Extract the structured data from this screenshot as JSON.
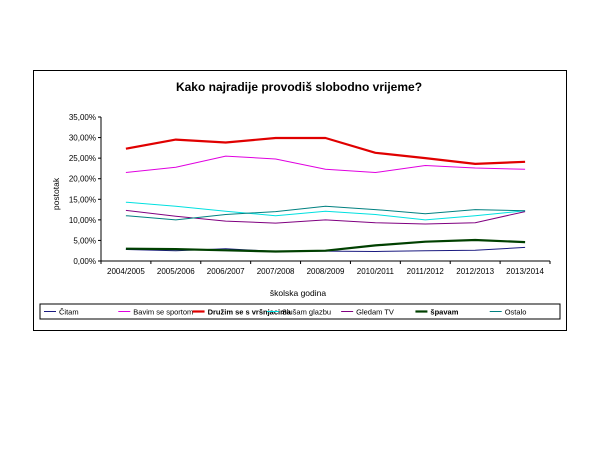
{
  "chart_data": {
    "type": "line",
    "title": "Kako najradije provodiš slobodno vrijeme?",
    "xlabel": "školska godina",
    "ylabel": "postotak",
    "ylim": [
      0,
      35
    ],
    "ytick_step": 5,
    "ytick_labels": [
      "0,00%",
      "5,00%",
      "10,00%",
      "15,00%",
      "20,00%",
      "25,00%",
      "30,00%",
      "35,00%"
    ],
    "categories": [
      "2004/2005",
      "2005/2006",
      "2006/2007",
      "2007/2008",
      "2008/2009",
      "2010/2011",
      "2011/2012",
      "2012/2013",
      "2013/2014"
    ],
    "grid": false,
    "legend_position": "bottom",
    "series": [
      {
        "name": "Čitam",
        "color": "#1a1a80",
        "bold": false,
        "values": [
          2.8,
          2.5,
          3.0,
          2.3,
          2.4,
          2.3,
          2.5,
          2.6,
          3.3
        ]
      },
      {
        "name": "Bavim se sportom",
        "color": "#e000e0",
        "bold": false,
        "values": [
          21.5,
          22.8,
          25.5,
          24.8,
          22.3,
          21.5,
          23.2,
          22.6,
          22.3
        ]
      },
      {
        "name": "Družim se s vršnjacima",
        "color": "#e00000",
        "bold": true,
        "values": [
          27.3,
          29.5,
          28.8,
          29.9,
          29.9,
          26.3,
          25.0,
          23.6,
          24.1
        ]
      },
      {
        "name": "Slušam glazbu",
        "color": "#00e0e0",
        "bold": false,
        "values": [
          14.3,
          13.3,
          12.1,
          11.0,
          12.1,
          11.3,
          10.0,
          11.0,
          12.2
        ]
      },
      {
        "name": "Gledam TV",
        "color": "#800080",
        "bold": false,
        "values": [
          12.3,
          10.9,
          9.7,
          9.2,
          10.0,
          9.3,
          9.0,
          9.3,
          12.0
        ]
      },
      {
        "name": "špavam",
        "color": "#004000",
        "bold": true,
        "values": [
          3.0,
          2.9,
          2.6,
          2.3,
          2.5,
          3.8,
          4.7,
          5.1,
          4.6
        ]
      },
      {
        "name": "Ostalo",
        "color": "#008080",
        "bold": false,
        "values": [
          11.0,
          10.0,
          11.3,
          12.0,
          13.3,
          12.5,
          11.5,
          12.5,
          12.2
        ]
      }
    ]
  }
}
